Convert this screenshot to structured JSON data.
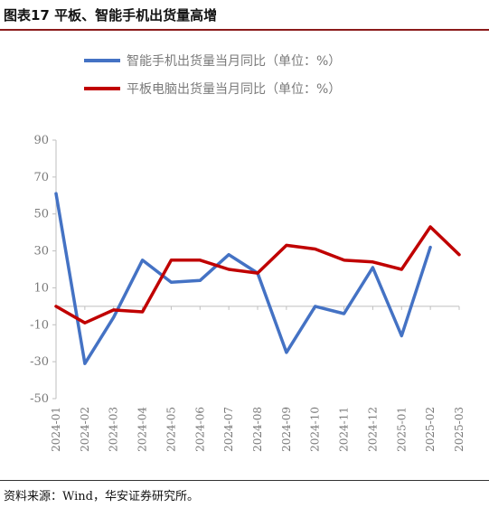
{
  "header": {
    "title": "图表17 平板、智能手机出货量高增"
  },
  "footer": {
    "source": "资料来源：Wind，华安证券研究所。"
  },
  "colors": {
    "phone": "#4472c4",
    "tablet": "#c00000",
    "accent_rule": "#8b1a1a"
  },
  "chart_data": {
    "type": "line",
    "title": "",
    "xlabel": "",
    "ylabel": "",
    "ylim": [
      -50,
      90
    ],
    "yticks": [
      90,
      70,
      50,
      30,
      10,
      -10,
      -30,
      -50
    ],
    "ytick_labels": [
      "90",
      "70",
      "50",
      "30",
      "10",
      "-10",
      "-30",
      "-50"
    ],
    "categories": [
      "2024-01",
      "2024-02",
      "2024-03",
      "2024-04",
      "2024-05",
      "2024-06",
      "2024-07",
      "2024-08",
      "2024-09",
      "2024-10",
      "2024-11",
      "2024-12",
      "2025-01",
      "2025-02",
      "2025-03"
    ],
    "legend_position": "top",
    "grid": false,
    "series": [
      {
        "name": "智能手机出货量当月同比（单位：%）",
        "color": "#4472c4",
        "values": [
          61,
          -31,
          -6,
          25,
          13,
          14,
          28,
          18,
          -25,
          0,
          -4,
          21,
          -16,
          32,
          null
        ]
      },
      {
        "name": "平板电脑出货量当月同比（单位：%）",
        "color": "#c00000",
        "values": [
          0,
          -9,
          -2,
          -3,
          25,
          25,
          20,
          18,
          33,
          31,
          25,
          24,
          20,
          43,
          28
        ]
      }
    ]
  }
}
